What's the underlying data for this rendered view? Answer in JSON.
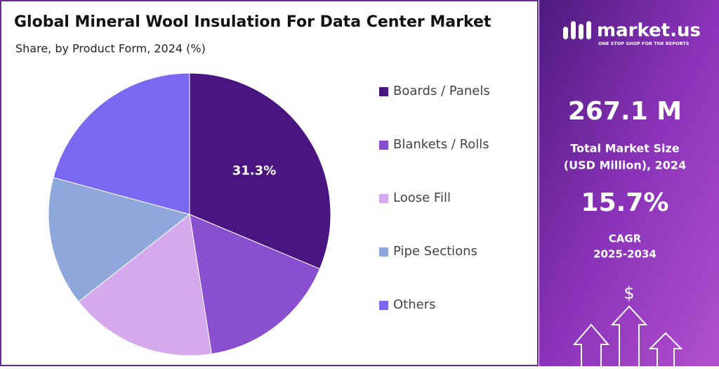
{
  "chart_data": {
    "type": "pie",
    "title": "Global Mineral Wool Insulation For Data Center Market",
    "subtitle": "Share, by Product Form, 2024 (%)",
    "categories": [
      "Boards / Panels",
      "Blankets / Rolls",
      "Loose Fill",
      "Pipe Sections",
      "Others"
    ],
    "values": [
      31.3,
      16.2,
      16.9,
      14.8,
      20.8
    ],
    "value_labels": [
      "31.3%",
      null,
      null,
      null,
      null
    ],
    "colors": [
      "#4a1580",
      "#8a4fcf",
      "#d6a8ee",
      "#8fa8dc",
      "#7a68f0"
    ],
    "legend": "right"
  },
  "sidebar": {
    "brand": "market.us",
    "tagline": "ONE STOP SHOP FOR THE REPORTS",
    "market_size": "267.1 M",
    "market_size_label": [
      "Total Market Size",
      "(USD Million), 2024"
    ],
    "cagr": "15.7%",
    "cagr_label": [
      "CAGR",
      "2025-2034"
    ],
    "icon": "$"
  }
}
